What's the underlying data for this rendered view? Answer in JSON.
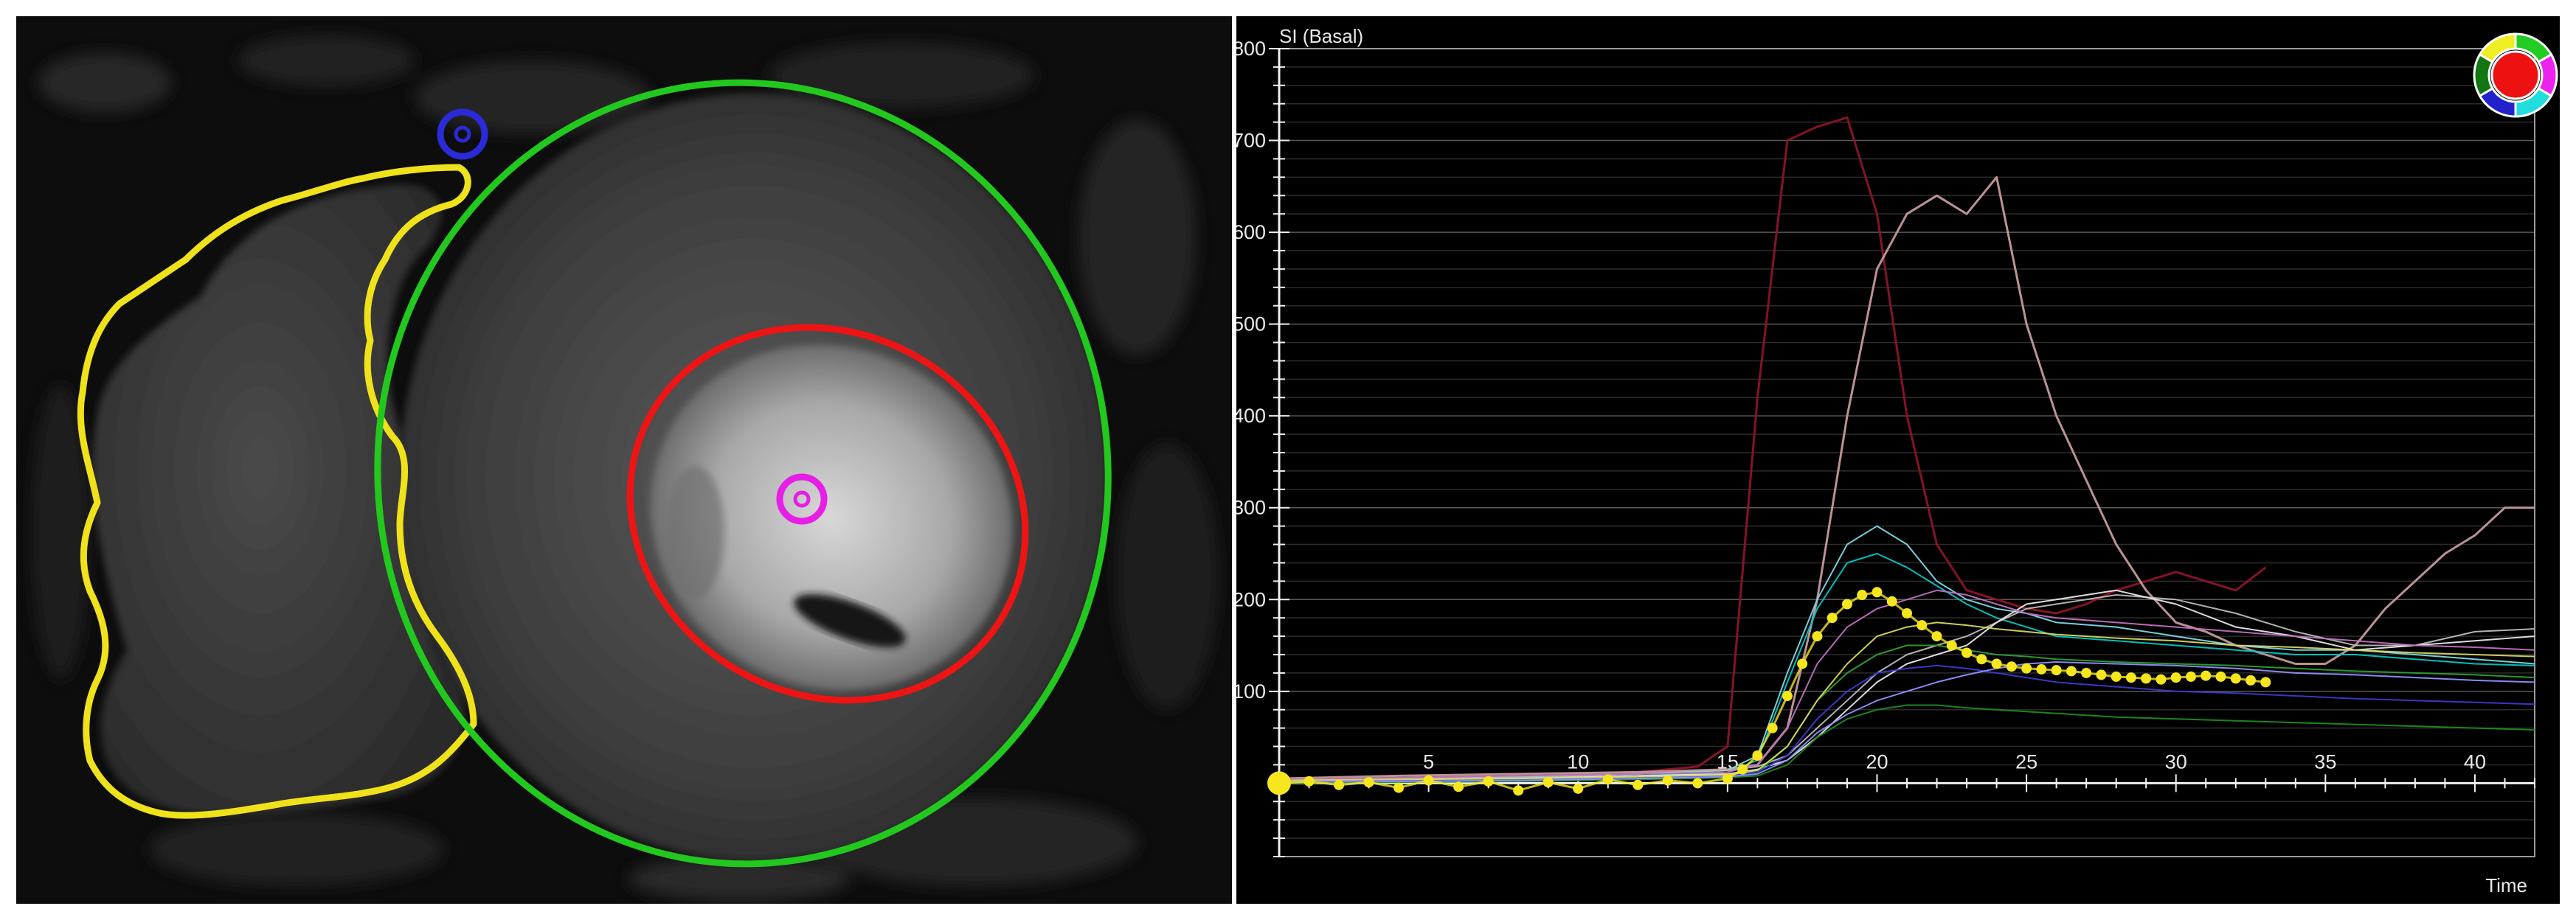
{
  "mri": {
    "contours": [
      {
        "name": "right-ventricle-contour",
        "color": "#f0e21a"
      },
      {
        "name": "epicardium-contour",
        "color": "#22c81e"
      },
      {
        "name": "endocardium-contour",
        "color": "#ee1414"
      }
    ],
    "markers": [
      {
        "name": "rv-insertion-marker",
        "color": "#2a2ad8"
      },
      {
        "name": "lv-center-marker",
        "color": "#e61ee6"
      }
    ]
  },
  "chart_data": {
    "type": "line",
    "title": "",
    "ylabel": "SI (Basal)",
    "xlabel": "Time",
    "xlim": [
      0,
      42
    ],
    "ylim": [
      -80,
      800
    ],
    "xticks": [
      5,
      10,
      15,
      20,
      25,
      30,
      35,
      40
    ],
    "yticks": [
      100,
      200,
      300,
      400,
      500,
      600,
      700,
      800
    ],
    "grid": true,
    "series": [
      {
        "color": "#8a1528",
        "width": 3,
        "x": [
          0,
          2,
          4,
          6,
          8,
          10,
          12,
          14,
          15,
          16,
          17,
          18,
          19,
          20,
          21,
          22,
          23,
          24,
          25,
          26,
          27,
          28,
          29,
          30,
          31,
          32,
          33
        ],
        "y": [
          0,
          5,
          3,
          8,
          6,
          10,
          12,
          18,
          40,
          420,
          700,
          715,
          725,
          620,
          400,
          260,
          210,
          200,
          190,
          185,
          195,
          210,
          220,
          230,
          220,
          210,
          235
        ]
      },
      {
        "color": "#c49a9a",
        "width": 3,
        "x": [
          0,
          4,
          8,
          12,
          15,
          16,
          17,
          18,
          19,
          20,
          21,
          22,
          23,
          24,
          25,
          26,
          27,
          28,
          29,
          30,
          31,
          32,
          33,
          34,
          35,
          36,
          37,
          38,
          39,
          40,
          41,
          42
        ],
        "y": [
          5,
          8,
          10,
          12,
          15,
          20,
          60,
          200,
          400,
          560,
          620,
          640,
          620,
          660,
          500,
          400,
          330,
          260,
          210,
          175,
          165,
          150,
          140,
          130,
          130,
          150,
          190,
          220,
          250,
          270,
          300,
          300
        ]
      },
      {
        "color": "#7fd8e6",
        "width": 2,
        "x": [
          0,
          4,
          8,
          12,
          15,
          16,
          17,
          18,
          19,
          20,
          21,
          22,
          23,
          24,
          25,
          26,
          28,
          30,
          32,
          34,
          36,
          38,
          40,
          42
        ],
        "y": [
          2,
          4,
          6,
          10,
          14,
          30,
          120,
          200,
          260,
          280,
          260,
          220,
          200,
          190,
          185,
          175,
          170,
          160,
          150,
          145,
          145,
          140,
          135,
          130
        ]
      },
      {
        "color": "#00c8c8",
        "width": 2,
        "x": [
          0,
          4,
          8,
          12,
          15,
          16,
          17,
          18,
          19,
          20,
          21,
          22,
          23,
          24,
          25,
          26,
          28,
          30,
          32,
          34,
          36,
          38,
          40,
          42
        ],
        "y": [
          0,
          3,
          5,
          8,
          12,
          25,
          110,
          190,
          240,
          250,
          235,
          215,
          195,
          180,
          170,
          160,
          155,
          150,
          145,
          140,
          140,
          135,
          130,
          128
        ]
      },
      {
        "color": "#bbbbbb",
        "width": 2,
        "x": [
          0,
          4,
          8,
          12,
          15,
          16,
          17,
          18,
          19,
          20,
          21,
          22,
          23,
          24,
          25,
          26,
          28,
          30,
          32,
          34,
          36,
          38,
          40,
          42
        ],
        "y": [
          3,
          5,
          7,
          10,
          14,
          18,
          30,
          60,
          90,
          120,
          140,
          150,
          160,
          175,
          190,
          195,
          205,
          200,
          185,
          165,
          150,
          150,
          165,
          168
        ]
      },
      {
        "color": "#e8e8e8",
        "width": 2,
        "x": [
          0,
          4,
          8,
          12,
          15,
          16,
          17,
          18,
          19,
          20,
          21,
          22,
          23,
          24,
          25,
          26,
          28,
          30,
          32,
          34,
          36,
          38,
          40,
          42
        ],
        "y": [
          1,
          3,
          5,
          8,
          10,
          15,
          25,
          50,
          80,
          110,
          130,
          140,
          150,
          175,
          195,
          200,
          210,
          195,
          170,
          160,
          145,
          150,
          155,
          160
        ]
      },
      {
        "color": "#c070c0",
        "width": 2,
        "x": [
          0,
          4,
          8,
          12,
          15,
          16,
          17,
          18,
          19,
          20,
          21,
          22,
          23,
          24,
          25,
          26,
          28,
          30,
          32,
          34,
          36,
          38,
          40,
          42
        ],
        "y": [
          4,
          6,
          8,
          10,
          12,
          20,
          60,
          130,
          170,
          190,
          200,
          210,
          205,
          195,
          185,
          180,
          175,
          170,
          165,
          160,
          155,
          150,
          148,
          145
        ]
      },
      {
        "color": "#2ea02e",
        "width": 2,
        "x": [
          0,
          4,
          8,
          12,
          15,
          16,
          17,
          18,
          19,
          20,
          21,
          22,
          23,
          24,
          25,
          26,
          28,
          30,
          32,
          34,
          36,
          38,
          40,
          42
        ],
        "y": [
          0,
          2,
          4,
          6,
          8,
          12,
          40,
          90,
          120,
          140,
          150,
          150,
          145,
          140,
          138,
          135,
          132,
          130,
          128,
          125,
          122,
          120,
          118,
          115
        ]
      },
      {
        "color": "#1e8c1e",
        "width": 2,
        "x": [
          0,
          4,
          8,
          12,
          15,
          16,
          17,
          18,
          19,
          20,
          21,
          22,
          23,
          24,
          25,
          26,
          28,
          30,
          32,
          34,
          36,
          38,
          40,
          42
        ],
        "y": [
          0,
          1,
          2,
          4,
          6,
          8,
          20,
          50,
          70,
          80,
          85,
          85,
          82,
          80,
          78,
          76,
          72,
          70,
          68,
          66,
          64,
          62,
          60,
          58
        ]
      },
      {
        "color": "#3a3ad0",
        "width": 2,
        "x": [
          0,
          4,
          8,
          12,
          15,
          16,
          17,
          18,
          19,
          20,
          21,
          22,
          23,
          24,
          25,
          26,
          28,
          30,
          32,
          34,
          36,
          38,
          40,
          42
        ],
        "y": [
          2,
          3,
          4,
          6,
          8,
          12,
          30,
          70,
          100,
          120,
          125,
          128,
          125,
          120,
          115,
          110,
          105,
          100,
          98,
          95,
          92,
          90,
          88,
          86
        ]
      },
      {
        "color": "#9090ff",
        "width": 2,
        "x": [
          0,
          4,
          8,
          12,
          15,
          16,
          17,
          18,
          19,
          20,
          21,
          22,
          23,
          24,
          25,
          26,
          28,
          30,
          32,
          34,
          36,
          38,
          40,
          42
        ],
        "y": [
          1,
          2,
          3,
          5,
          7,
          10,
          25,
          55,
          75,
          90,
          100,
          110,
          118,
          125,
          130,
          132,
          130,
          128,
          125,
          120,
          118,
          115,
          112,
          110
        ]
      },
      {
        "color": "#d8d860",
        "width": 2,
        "x": [
          0,
          4,
          8,
          12,
          15,
          16,
          17,
          18,
          19,
          20,
          21,
          22,
          23,
          24,
          25,
          26,
          28,
          30,
          32,
          34,
          36,
          38,
          40,
          42
        ],
        "y": [
          3,
          4,
          5,
          7,
          9,
          14,
          40,
          90,
          130,
          160,
          170,
          175,
          172,
          168,
          165,
          162,
          158,
          155,
          150,
          148,
          145,
          142,
          140,
          138
        ]
      }
    ],
    "mean_curve": {
      "color": "#f5e61e",
      "x": [
        0,
        1,
        2,
        3,
        4,
        5,
        6,
        7,
        8,
        9,
        10,
        11,
        12,
        13,
        14,
        15,
        15.5,
        16,
        16.5,
        17,
        17.5,
        18,
        18.5,
        19,
        19.5,
        20,
        20.5,
        21,
        21.5,
        22,
        22.5,
        23,
        23.5,
        24,
        24.5,
        25,
        25.5,
        26,
        26.5,
        27,
        27.5,
        28,
        28.5,
        29,
        29.5,
        30,
        30.5,
        31,
        31.5,
        32,
        32.5,
        33
      ],
      "y": [
        0,
        2,
        -2,
        1,
        -5,
        3,
        -4,
        2,
        -8,
        1,
        -6,
        4,
        -2,
        3,
        0,
        5,
        15,
        30,
        60,
        95,
        130,
        160,
        180,
        195,
        205,
        208,
        198,
        185,
        172,
        160,
        150,
        142,
        135,
        130,
        127,
        125,
        124,
        123,
        122,
        120,
        118,
        116,
        115,
        114,
        113,
        115,
        116,
        117,
        116,
        114,
        112,
        110
      ]
    },
    "legend_ring": {
      "center": "#ee1111",
      "segments": [
        "#22cc22",
        "#ee22ee",
        "#22dddd",
        "#2222cc",
        "#117711",
        "#eeee22"
      ]
    }
  }
}
